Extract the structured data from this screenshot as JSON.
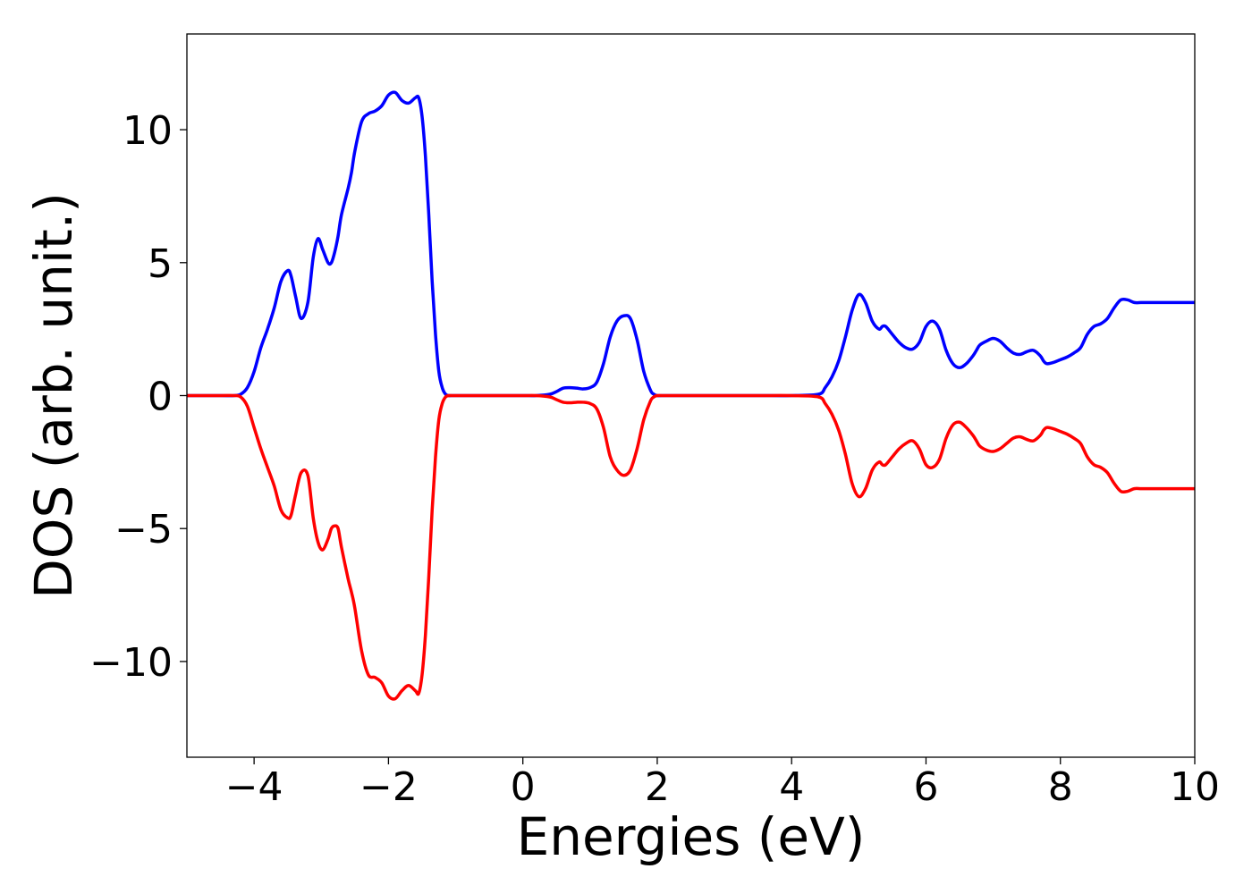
{
  "chart_data": {
    "type": "line",
    "title": "",
    "xlabel": "Energies (eV)",
    "ylabel": "DOS (arb. unit.)",
    "xlim": [
      -5,
      10
    ],
    "ylim": [
      -13.6,
      13.6
    ],
    "xticks": [
      -4,
      -2,
      0,
      2,
      4,
      6,
      8,
      10
    ],
    "xtick_labels": [
      "−4",
      "−2",
      "0",
      "2",
      "4",
      "6",
      "8",
      "10"
    ],
    "yticks": [
      -10,
      -5,
      0,
      5,
      10
    ],
    "ytick_labels": [
      "−10",
      "−5",
      "0",
      "5",
      "10"
    ],
    "grid": false,
    "legend": "none",
    "series": [
      {
        "color": "#0000ff",
        "x": [
          -5.0,
          -4.5,
          -4.3,
          -4.2,
          -4.1,
          -4.0,
          -3.9,
          -3.8,
          -3.7,
          -3.6,
          -3.5,
          -3.45,
          -3.38,
          -3.3,
          -3.2,
          -3.12,
          -3.05,
          -2.98,
          -2.9,
          -2.85,
          -2.8,
          -2.75,
          -2.7,
          -2.6,
          -2.55,
          -2.5,
          -2.4,
          -2.3,
          -2.2,
          -2.1,
          -2.0,
          -1.9,
          -1.8,
          -1.7,
          -1.6,
          -1.55,
          -1.5,
          -1.45,
          -1.4,
          -1.35,
          -1.3,
          -1.25,
          -1.2,
          -1.15,
          -1.1,
          -1.05,
          -1.0,
          -0.95,
          -0.9,
          -0.85,
          -0.8,
          -0.75,
          -0.7,
          -0.6,
          -0.5,
          -0.4,
          -0.3,
          0.0,
          0.2,
          0.4,
          0.5,
          0.6,
          0.7,
          0.8,
          0.9,
          1.0,
          1.1,
          1.2,
          1.3,
          1.4,
          1.5,
          1.6,
          1.7,
          1.8,
          1.9,
          1.95,
          2.0,
          2.1,
          2.2,
          2.3,
          2.4,
          2.5,
          2.8,
          3.5,
          4.0,
          4.4,
          4.5,
          4.6,
          4.7,
          4.8,
          4.9,
          5.0,
          5.1,
          5.2,
          5.3,
          5.35,
          5.4,
          5.5,
          5.6,
          5.7,
          5.8,
          5.9,
          6.0,
          6.1,
          6.2,
          6.3,
          6.4,
          6.5,
          6.6,
          6.7,
          6.75,
          6.8,
          6.9,
          7.0,
          7.1,
          7.2,
          7.3,
          7.4,
          7.5,
          7.6,
          7.7,
          7.75,
          7.8,
          7.9,
          8.0,
          8.1,
          8.2,
          8.3,
          8.4,
          8.5,
          8.6,
          8.7,
          8.8,
          8.9,
          9.0,
          9.1,
          9.2,
          9.3,
          9.4,
          9.5,
          9.6,
          9.7,
          9.8,
          9.9,
          10.0
        ],
        "y": [
          0.0,
          0.0,
          0.0,
          0.05,
          0.3,
          0.9,
          1.8,
          2.5,
          3.3,
          4.3,
          4.7,
          4.5,
          3.7,
          2.9,
          3.5,
          5.2,
          5.9,
          5.5,
          5.0,
          5.0,
          5.4,
          6.0,
          6.8,
          7.8,
          8.4,
          9.2,
          10.3,
          10.6,
          10.7,
          10.9,
          11.3,
          11.4,
          11.1,
          11.0,
          11.2,
          11.2,
          10.5,
          9.0,
          6.8,
          4.3,
          2.3,
          0.9,
          0.3,
          0.05,
          0.0,
          0.0,
          0.0,
          0.0,
          0.0,
          0.0,
          0.0,
          0.0,
          0.0,
          0.0,
          0.0,
          0.0,
          0.0,
          0.0,
          0.0,
          0.05,
          0.15,
          0.28,
          0.3,
          0.28,
          0.25,
          0.3,
          0.5,
          1.2,
          2.2,
          2.8,
          3.0,
          2.9,
          2.1,
          0.9,
          0.2,
          0.05,
          0.0,
          0.0,
          0.0,
          0.0,
          0.0,
          0.0,
          0.0,
          0.0,
          0.0,
          0.05,
          0.3,
          0.7,
          1.3,
          2.2,
          3.2,
          3.8,
          3.5,
          2.8,
          2.5,
          2.6,
          2.6,
          2.3,
          2.0,
          1.8,
          1.75,
          2.0,
          2.6,
          2.8,
          2.5,
          1.7,
          1.2,
          1.05,
          1.2,
          1.5,
          1.7,
          1.9,
          2.05,
          2.15,
          2.05,
          1.8,
          1.6,
          1.55,
          1.65,
          1.7,
          1.5,
          1.3,
          1.2,
          1.25,
          1.35,
          1.45,
          1.6,
          1.8,
          2.3,
          2.6,
          2.7,
          2.9,
          3.3,
          3.6,
          3.6,
          3.5,
          3.5,
          3.5,
          3.5,
          3.5,
          3.5,
          3.5,
          3.5,
          3.5,
          3.5
        ]
      },
      {
        "color": "#ff0000",
        "x": [
          -5.0,
          -4.5,
          -4.3,
          -4.2,
          -4.1,
          -4.0,
          -3.9,
          -3.8,
          -3.7,
          -3.6,
          -3.5,
          -3.45,
          -3.38,
          -3.3,
          -3.2,
          -3.12,
          -3.05,
          -2.98,
          -2.9,
          -2.85,
          -2.8,
          -2.75,
          -2.7,
          -2.6,
          -2.55,
          -2.5,
          -2.4,
          -2.3,
          -2.2,
          -2.1,
          -2.0,
          -1.9,
          -1.8,
          -1.7,
          -1.6,
          -1.55,
          -1.5,
          -1.45,
          -1.4,
          -1.35,
          -1.3,
          -1.25,
          -1.2,
          -1.15,
          -1.1,
          -1.05,
          -1.0,
          -0.95,
          -0.9,
          -0.85,
          -0.8,
          -0.75,
          -0.7,
          -0.6,
          -0.5,
          -0.4,
          -0.3,
          0.0,
          0.2,
          0.4,
          0.5,
          0.6,
          0.7,
          0.8,
          0.9,
          1.0,
          1.1,
          1.2,
          1.3,
          1.4,
          1.5,
          1.6,
          1.7,
          1.8,
          1.9,
          1.95,
          2.0,
          2.1,
          2.2,
          2.3,
          2.4,
          2.5,
          2.8,
          3.5,
          4.0,
          4.4,
          4.5,
          4.6,
          4.7,
          4.8,
          4.9,
          5.0,
          5.1,
          5.2,
          5.3,
          5.35,
          5.4,
          5.5,
          5.6,
          5.7,
          5.8,
          5.9,
          6.0,
          6.1,
          6.2,
          6.3,
          6.4,
          6.5,
          6.6,
          6.7,
          6.75,
          6.8,
          6.9,
          7.0,
          7.1,
          7.2,
          7.3,
          7.4,
          7.5,
          7.6,
          7.7,
          7.75,
          7.8,
          7.9,
          8.0,
          8.1,
          8.2,
          8.3,
          8.4,
          8.5,
          8.6,
          8.7,
          8.8,
          8.9,
          9.0,
          9.1,
          9.2,
          9.3,
          9.4,
          9.5,
          9.6,
          9.7,
          9.8,
          9.9,
          10.0
        ],
        "y": [
          0.0,
          0.0,
          0.0,
          -0.05,
          -0.4,
          -1.2,
          -2.0,
          -2.7,
          -3.4,
          -4.3,
          -4.6,
          -4.5,
          -3.7,
          -2.9,
          -3.0,
          -4.6,
          -5.5,
          -5.8,
          -5.4,
          -5.0,
          -4.9,
          -5.0,
          -5.7,
          -6.9,
          -7.4,
          -8.0,
          -9.6,
          -10.5,
          -10.6,
          -10.8,
          -11.3,
          -11.4,
          -11.1,
          -10.9,
          -11.1,
          -11.2,
          -10.5,
          -9.0,
          -6.8,
          -4.3,
          -2.3,
          -0.9,
          -0.3,
          -0.05,
          0.0,
          0.0,
          0.0,
          0.0,
          0.0,
          0.0,
          0.0,
          0.0,
          0.0,
          0.0,
          0.0,
          0.0,
          0.0,
          0.0,
          0.0,
          -0.05,
          -0.15,
          -0.25,
          -0.27,
          -0.25,
          -0.25,
          -0.3,
          -0.5,
          -1.2,
          -2.3,
          -2.8,
          -3.0,
          -2.8,
          -2.0,
          -0.9,
          -0.2,
          -0.05,
          0.0,
          0.0,
          0.0,
          0.0,
          0.0,
          0.0,
          0.0,
          0.0,
          0.0,
          -0.05,
          -0.3,
          -0.7,
          -1.3,
          -2.2,
          -3.3,
          -3.8,
          -3.5,
          -2.8,
          -2.5,
          -2.6,
          -2.6,
          -2.3,
          -2.0,
          -1.8,
          -1.7,
          -2.0,
          -2.6,
          -2.7,
          -2.4,
          -1.6,
          -1.1,
          -1.0,
          -1.2,
          -1.5,
          -1.7,
          -1.9,
          -2.05,
          -2.1,
          -2.0,
          -1.8,
          -1.6,
          -1.55,
          -1.65,
          -1.7,
          -1.5,
          -1.3,
          -1.2,
          -1.25,
          -1.35,
          -1.45,
          -1.6,
          -1.8,
          -2.3,
          -2.6,
          -2.7,
          -2.9,
          -3.3,
          -3.6,
          -3.6,
          -3.5,
          -3.5,
          -3.5,
          -3.5,
          -3.5,
          -3.5,
          -3.5,
          -3.5,
          -3.5,
          -3.5
        ]
      }
    ]
  }
}
